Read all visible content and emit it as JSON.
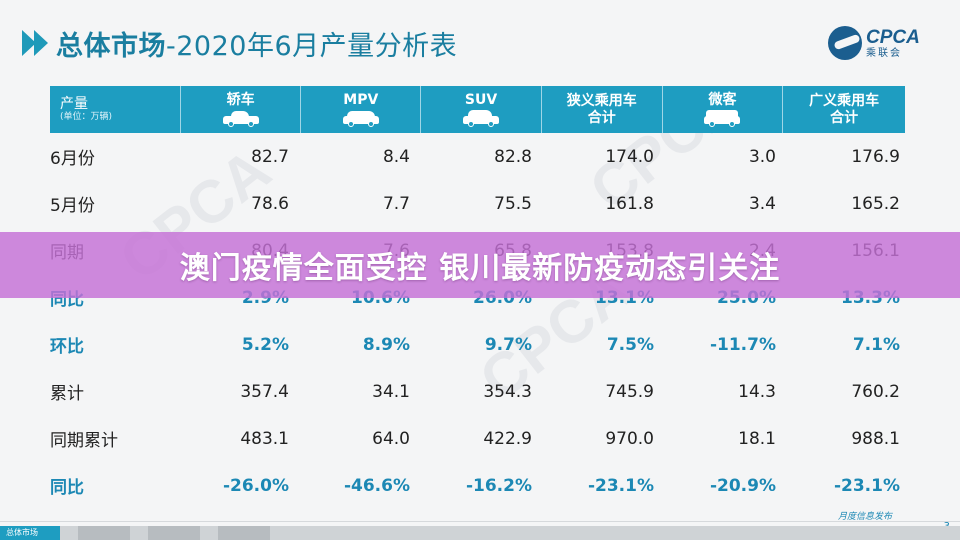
{
  "header": {
    "title_bold": "总体市场",
    "title_rest": "-2020年6月产量分析表"
  },
  "logo": {
    "brand": "CPCA",
    "name_cn": "乘联会"
  },
  "table": {
    "corner": {
      "label": "产量",
      "unit": "(单位：万辆)"
    },
    "columns": [
      {
        "label": "轿车",
        "icon": "sedan-icon"
      },
      {
        "label": "MPV",
        "icon": "mpv-icon"
      },
      {
        "label": "SUV",
        "icon": "suv-icon"
      },
      {
        "label": "狭义乘用车",
        "label2": "合计"
      },
      {
        "label": "微客",
        "icon": "minivan-icon"
      },
      {
        "label": "广义乘用车",
        "label2": "合计"
      }
    ],
    "rows": [
      {
        "label": "6月份",
        "type": "value",
        "cells": [
          "82.7",
          "8.4",
          "82.8",
          "174.0",
          "3.0",
          "176.9"
        ]
      },
      {
        "label": "5月份",
        "type": "value",
        "cells": [
          "78.6",
          "7.7",
          "75.5",
          "161.8",
          "3.4",
          "165.2"
        ]
      },
      {
        "label": "同期",
        "type": "value",
        "cells": [
          "80.4",
          "7.6",
          "65.8",
          "153.8",
          "2.4",
          "156.1"
        ]
      },
      {
        "label": "同比",
        "type": "rate",
        "cells": [
          "2.9%",
          "10.6%",
          "26.0%",
          "13.1%",
          "25.0%",
          "13.3%"
        ]
      },
      {
        "label": "环比",
        "type": "rate",
        "cells": [
          "5.2%",
          "8.9%",
          "9.7%",
          "7.5%",
          "-11.7%",
          "7.1%"
        ]
      },
      {
        "label": "累计",
        "type": "value",
        "cells": [
          "357.4",
          "34.1",
          "354.3",
          "745.9",
          "14.3",
          "760.2"
        ]
      },
      {
        "label": "同期累计",
        "type": "value",
        "cells": [
          "483.1",
          "64.0",
          "422.9",
          "970.0",
          "18.1",
          "988.1"
        ]
      },
      {
        "label": "同比",
        "type": "rate",
        "cells": [
          "-26.0%",
          "-46.6%",
          "-16.2%",
          "-23.1%",
          "-20.9%",
          "-23.1%"
        ]
      }
    ]
  },
  "banner": {
    "text": "澳门疫情全面受控 银川最新防疫动态引关注"
  },
  "footer": {
    "tabs": [
      "总体市场",
      "",
      "",
      ""
    ],
    "note": "月度信息发布",
    "page": "3"
  },
  "colors": {
    "accent": "#1e9dc1",
    "rate_text": "#1c88b4",
    "banner": "#c470d6"
  }
}
